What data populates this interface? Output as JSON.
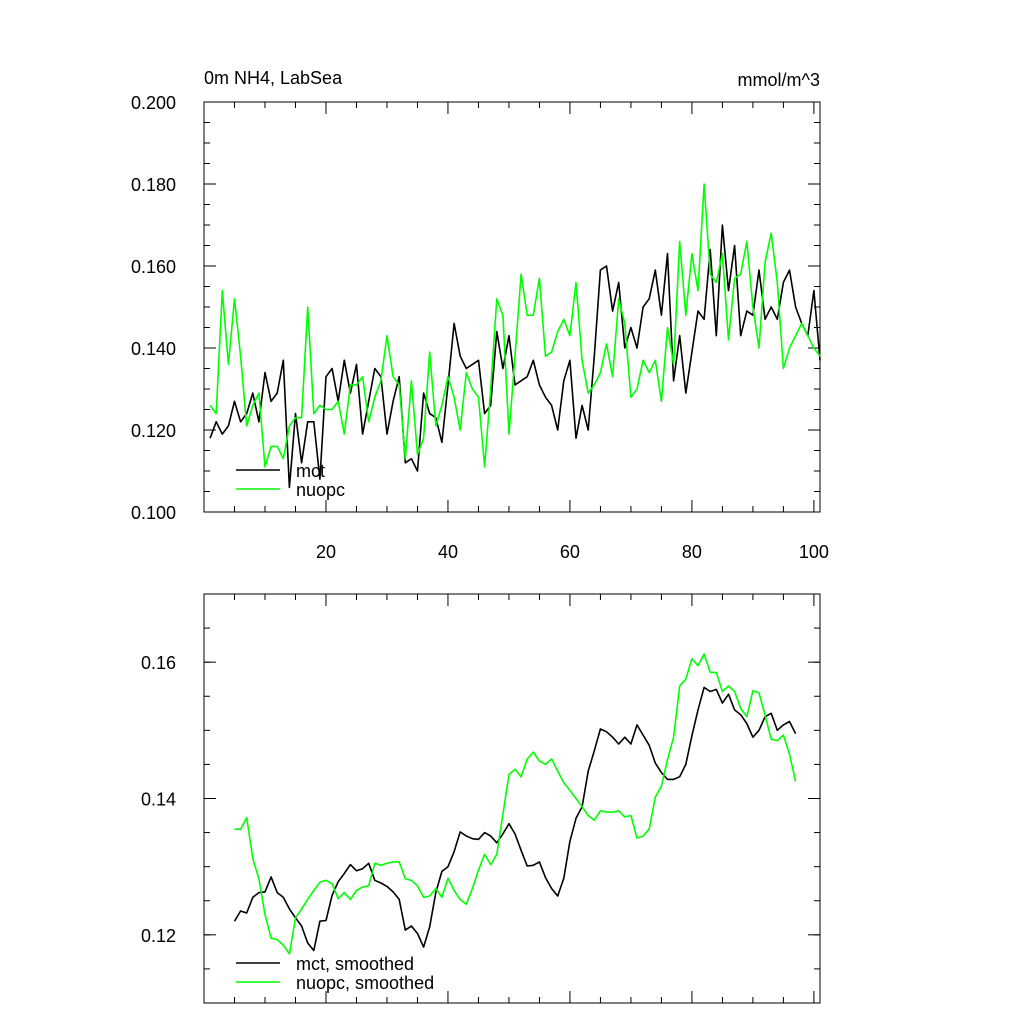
{
  "chart_data": [
    {
      "type": "line",
      "title_left": "0m NH4, LabSea",
      "title_right": "mmol/m^3",
      "xlabel": "",
      "ylabel": "",
      "xlim": [
        0,
        101
      ],
      "ylim": [
        0.1,
        0.2
      ],
      "xticks": [
        20,
        40,
        60,
        80,
        100
      ],
      "xtick_labels": [
        "20",
        "40",
        "60",
        "80",
        "100"
      ],
      "yticks": [
        0.1,
        0.12,
        0.14,
        0.16,
        0.18,
        0.2
      ],
      "ytick_labels": [
        "0.100",
        "0.120",
        "0.140",
        "0.160",
        "0.180",
        "0.200"
      ],
      "legend_position": "bottom-left",
      "x": [
        1,
        2,
        3,
        4,
        5,
        6,
        7,
        8,
        9,
        10,
        11,
        12,
        13,
        14,
        15,
        16,
        17,
        18,
        19,
        20,
        21,
        22,
        23,
        24,
        25,
        26,
        27,
        28,
        29,
        30,
        31,
        32,
        33,
        34,
        35,
        36,
        37,
        38,
        39,
        40,
        41,
        42,
        43,
        44,
        45,
        46,
        47,
        48,
        49,
        50,
        51,
        52,
        53,
        54,
        55,
        56,
        57,
        58,
        59,
        60,
        61,
        62,
        63,
        64,
        65,
        66,
        67,
        68,
        69,
        70,
        71,
        72,
        73,
        74,
        75,
        76,
        77,
        78,
        79,
        80,
        81,
        82,
        83,
        84,
        85,
        86,
        87,
        88,
        89,
        90,
        91,
        92,
        93,
        94,
        95,
        96,
        97,
        98,
        99,
        100,
        101
      ],
      "series": [
        {
          "name": "mct",
          "color": "#000000",
          "values": [
            0.118,
            0.122,
            0.119,
            0.121,
            0.127,
            0.122,
            0.124,
            0.129,
            0.122,
            0.134,
            0.127,
            0.129,
            0.137,
            0.106,
            0.124,
            0.112,
            0.122,
            0.122,
            0.108,
            0.133,
            0.135,
            0.127,
            0.137,
            0.129,
            0.136,
            0.119,
            0.127,
            0.135,
            0.133,
            0.119,
            0.127,
            0.133,
            0.112,
            0.113,
            0.11,
            0.129,
            0.124,
            0.123,
            0.117,
            0.131,
            0.146,
            0.138,
            0.135,
            0.136,
            0.137,
            0.124,
            0.126,
            0.144,
            0.135,
            0.143,
            0.131,
            0.132,
            0.133,
            0.137,
            0.131,
            0.128,
            0.126,
            0.12,
            0.132,
            0.137,
            0.118,
            0.126,
            0.12,
            0.138,
            0.159,
            0.16,
            0.149,
            0.156,
            0.14,
            0.145,
            0.14,
            0.15,
            0.152,
            0.159,
            0.148,
            0.163,
            0.132,
            0.143,
            0.129,
            0.139,
            0.149,
            0.147,
            0.164,
            0.143,
            0.17,
            0.154,
            0.165,
            0.143,
            0.149,
            0.148,
            0.159,
            0.147,
            0.15,
            0.147,
            0.156,
            0.159,
            0.15,
            0.146,
            0.143,
            0.154,
            0.137
          ]
        },
        {
          "name": "nuopc",
          "color": "#00ff00",
          "values": [
            0.126,
            0.124,
            0.154,
            0.136,
            0.152,
            0.138,
            0.121,
            0.126,
            0.129,
            0.111,
            0.116,
            0.116,
            0.113,
            0.121,
            0.123,
            0.123,
            0.15,
            0.124,
            0.126,
            0.125,
            0.125,
            0.127,
            0.119,
            0.131,
            0.131,
            0.133,
            0.122,
            0.128,
            0.132,
            0.143,
            0.133,
            0.131,
            0.113,
            0.132,
            0.114,
            0.118,
            0.139,
            0.121,
            0.126,
            0.133,
            0.128,
            0.12,
            0.134,
            0.13,
            0.128,
            0.111,
            0.13,
            0.152,
            0.148,
            0.119,
            0.138,
            0.158,
            0.148,
            0.148,
            0.157,
            0.138,
            0.139,
            0.144,
            0.147,
            0.143,
            0.156,
            0.137,
            0.129,
            0.131,
            0.134,
            0.141,
            0.133,
            0.152,
            0.146,
            0.128,
            0.13,
            0.137,
            0.134,
            0.137,
            0.127,
            0.145,
            0.136,
            0.166,
            0.148,
            0.163,
            0.154,
            0.18,
            0.158,
            0.156,
            0.163,
            0.142,
            0.157,
            0.158,
            0.166,
            0.15,
            0.14,
            0.161,
            0.168,
            0.156,
            0.135,
            0.14,
            0.143,
            0.146,
            0.143,
            0.14,
            0.138
          ]
        }
      ]
    },
    {
      "type": "line",
      "title_left": "",
      "title_right": "",
      "xlabel": "",
      "ylabel": "",
      "xlim": [
        0,
        101
      ],
      "ylim": [
        0.11,
        0.17
      ],
      "xticks": [
        20,
        40,
        60,
        80,
        100
      ],
      "xtick_labels": [
        "",
        "",
        "",
        "",
        ""
      ],
      "yticks": [
        0.12,
        0.14,
        0.16
      ],
      "ytick_labels": [
        "0.12",
        "0.14",
        "0.16"
      ],
      "legend_position": "bottom-left",
      "x": [
        5,
        6,
        7,
        8,
        9,
        10,
        11,
        12,
        13,
        14,
        15,
        16,
        17,
        18,
        19,
        20,
        21,
        22,
        23,
        24,
        25,
        26,
        27,
        28,
        29,
        30,
        31,
        32,
        33,
        34,
        35,
        36,
        37,
        38,
        39,
        40,
        41,
        42,
        43,
        44,
        45,
        46,
        47,
        48,
        49,
        50,
        51,
        52,
        53,
        54,
        55,
        56,
        57,
        58,
        59,
        60,
        61,
        62,
        63,
        64,
        65,
        66,
        67,
        68,
        69,
        70,
        71,
        72,
        73,
        74,
        75,
        76,
        77,
        78,
        79,
        80,
        81,
        82,
        83,
        84,
        85,
        86,
        87,
        88,
        89,
        90,
        91,
        92,
        93,
        94,
        95,
        96,
        97
      ],
      "series": [
        {
          "name": "mct, smoothed",
          "color": "#000000",
          "values": [
            0.122,
            0.1235,
            0.1232,
            0.1255,
            0.1262,
            0.1263,
            0.1285,
            0.1262,
            0.1255,
            0.1238,
            0.1225,
            0.1213,
            0.1188,
            0.1177,
            0.122,
            0.1221,
            0.1258,
            0.1278,
            0.129,
            0.1303,
            0.1294,
            0.1297,
            0.1305,
            0.128,
            0.1276,
            0.1271,
            0.1263,
            0.1252,
            0.1207,
            0.1213,
            0.1202,
            0.1182,
            0.1212,
            0.1262,
            0.1293,
            0.13,
            0.1322,
            0.1351,
            0.1345,
            0.1341,
            0.134,
            0.135,
            0.1345,
            0.1335,
            0.1348,
            0.1363,
            0.1348,
            0.1324,
            0.1301,
            0.1302,
            0.1307,
            0.1284,
            0.1268,
            0.1257,
            0.1283,
            0.1337,
            0.1371,
            0.1388,
            0.144,
            0.147,
            0.1502,
            0.1498,
            0.149,
            0.148,
            0.149,
            0.148,
            0.1508,
            0.1493,
            0.1478,
            0.1452,
            0.1438,
            0.1428,
            0.1428,
            0.1432,
            0.145,
            0.1492,
            0.153,
            0.1563,
            0.1557,
            0.156,
            0.154,
            0.1553,
            0.153,
            0.1523,
            0.151,
            0.149,
            0.15,
            0.152,
            0.1525,
            0.15,
            0.1508,
            0.1513,
            0.1495
          ]
        },
        {
          "name": "nuopc, smoothed",
          "color": "#00ff00",
          "values": [
            0.1355,
            0.1355,
            0.1372,
            0.1312,
            0.1282,
            0.123,
            0.1195,
            0.1193,
            0.1185,
            0.1172,
            0.1225,
            0.1238,
            0.1252,
            0.1265,
            0.1277,
            0.128,
            0.1275,
            0.1253,
            0.1262,
            0.1252,
            0.1265,
            0.127,
            0.1272,
            0.1305,
            0.1302,
            0.1305,
            0.1307,
            0.1307,
            0.1282,
            0.128,
            0.1272,
            0.1255,
            0.1257,
            0.1268,
            0.1255,
            0.1283,
            0.1265,
            0.1252,
            0.1245,
            0.1268,
            0.1295,
            0.1318,
            0.1303,
            0.1318,
            0.1377,
            0.1435,
            0.1443,
            0.1432,
            0.1458,
            0.1468,
            0.1455,
            0.145,
            0.1458,
            0.144,
            0.1423,
            0.1412,
            0.14,
            0.1388,
            0.1375,
            0.1368,
            0.1382,
            0.138,
            0.138,
            0.1382,
            0.1373,
            0.1375,
            0.1342,
            0.1345,
            0.1355,
            0.1402,
            0.1418,
            0.1457,
            0.149,
            0.1565,
            0.1575,
            0.1605,
            0.1595,
            0.1612,
            0.1585,
            0.1585,
            0.1557,
            0.1565,
            0.1557,
            0.1532,
            0.152,
            0.1558,
            0.1555,
            0.1522,
            0.1487,
            0.1485,
            0.1493,
            0.1465,
            0.1425
          ]
        }
      ]
    }
  ]
}
